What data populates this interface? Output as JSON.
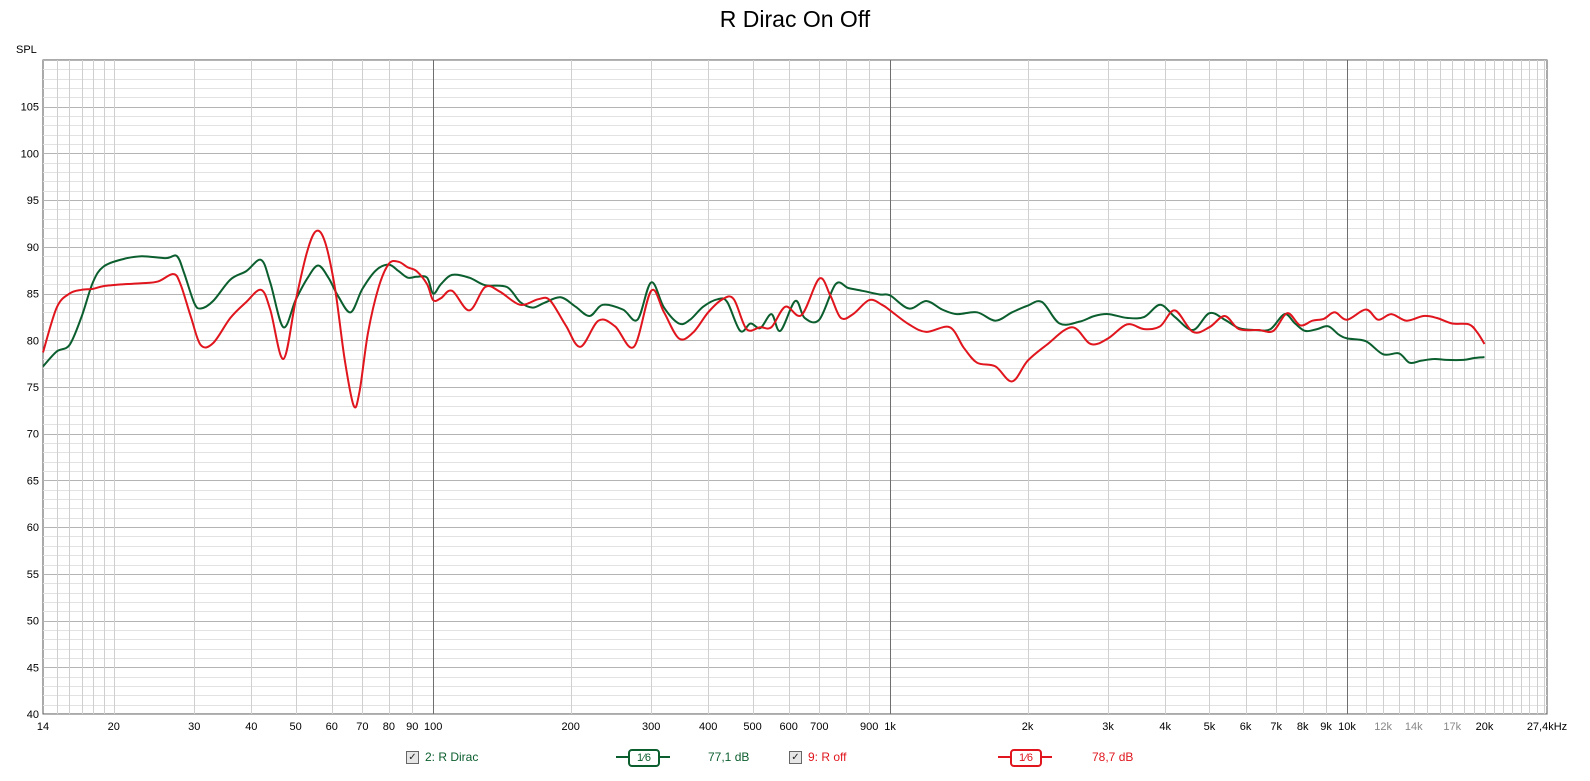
{
  "chart_data": {
    "type": "line",
    "title": "R Dirac On Off",
    "ylabel": "SPL",
    "xlabel": "",
    "x_scale": "log",
    "xlim": [
      14,
      27400
    ],
    "ylim": [
      40,
      110
    ],
    "grid": true,
    "y_ticks": [
      "40",
      "45",
      "50",
      "55",
      "60",
      "65",
      "70",
      "75",
      "80",
      "85",
      "90",
      "95",
      "100",
      "105"
    ],
    "x_ticks": [
      {
        "v": 14,
        "label": "14",
        "minor": false
      },
      {
        "v": 20,
        "label": "20",
        "minor": false
      },
      {
        "v": 30,
        "label": "30",
        "minor": false
      },
      {
        "v": 40,
        "label": "40",
        "minor": false
      },
      {
        "v": 50,
        "label": "50",
        "minor": false
      },
      {
        "v": 60,
        "label": "60",
        "minor": false
      },
      {
        "v": 70,
        "label": "70",
        "minor": false
      },
      {
        "v": 80,
        "label": "80",
        "minor": false
      },
      {
        "v": 90,
        "label": "90",
        "minor": false
      },
      {
        "v": 100,
        "label": "100",
        "minor": false
      },
      {
        "v": 200,
        "label": "200",
        "minor": false
      },
      {
        "v": 300,
        "label": "300",
        "minor": false
      },
      {
        "v": 400,
        "label": "400",
        "minor": false
      },
      {
        "v": 500,
        "label": "500",
        "minor": false
      },
      {
        "v": 600,
        "label": "600",
        "minor": false
      },
      {
        "v": 700,
        "label": "700",
        "minor": false
      },
      {
        "v": 900,
        "label": "900",
        "minor": false
      },
      {
        "v": 1000,
        "label": "1k",
        "minor": false
      },
      {
        "v": 2000,
        "label": "2k",
        "minor": false
      },
      {
        "v": 3000,
        "label": "3k",
        "minor": false
      },
      {
        "v": 4000,
        "label": "4k",
        "minor": false
      },
      {
        "v": 5000,
        "label": "5k",
        "minor": false
      },
      {
        "v": 6000,
        "label": "6k",
        "minor": false
      },
      {
        "v": 7000,
        "label": "7k",
        "minor": false
      },
      {
        "v": 8000,
        "label": "8k",
        "minor": false
      },
      {
        "v": 9000,
        "label": "9k",
        "minor": false
      },
      {
        "v": 10000,
        "label": "10k",
        "minor": false
      },
      {
        "v": 12000,
        "label": "12k",
        "minor": true
      },
      {
        "v": 14000,
        "label": "14k",
        "minor": true
      },
      {
        "v": 17000,
        "label": "17k",
        "minor": true
      },
      {
        "v": 20000,
        "label": "20k",
        "minor": false
      },
      {
        "v": 27400,
        "label": "27,4kHz",
        "minor": false
      }
    ],
    "series": [
      {
        "name": "2: R Dirac",
        "color": "#0b5e2e",
        "points": [
          [
            14,
            77.2
          ],
          [
            15,
            78.8
          ],
          [
            16,
            79.5
          ],
          [
            17,
            82.5
          ],
          [
            18,
            86.2
          ],
          [
            19,
            87.9
          ],
          [
            21,
            88.7
          ],
          [
            23,
            89.0
          ],
          [
            26,
            88.8
          ],
          [
            27.5,
            89.0
          ],
          [
            28.5,
            87.2
          ],
          [
            30,
            84.0
          ],
          [
            31,
            83.4
          ],
          [
            33,
            84.2
          ],
          [
            36,
            86.5
          ],
          [
            39,
            87.4
          ],
          [
            42,
            88.6
          ],
          [
            44,
            86.2
          ],
          [
            47,
            81.4
          ],
          [
            50,
            84.3
          ],
          [
            53,
            86.6
          ],
          [
            56,
            88.0
          ],
          [
            59,
            86.7
          ],
          [
            62,
            84.7
          ],
          [
            66,
            83.0
          ],
          [
            70,
            85.5
          ],
          [
            75,
            87.5
          ],
          [
            80,
            88.1
          ],
          [
            84,
            87.4
          ],
          [
            88,
            86.7
          ],
          [
            92,
            86.8
          ],
          [
            97,
            86.7
          ],
          [
            100,
            85.0
          ],
          [
            104,
            86.0
          ],
          [
            110,
            87.0
          ],
          [
            120,
            86.7
          ],
          [
            130,
            85.9
          ],
          [
            145,
            85.7
          ],
          [
            155,
            84.1
          ],
          [
            165,
            83.5
          ],
          [
            175,
            84.0
          ],
          [
            190,
            84.6
          ],
          [
            205,
            83.6
          ],
          [
            220,
            82.6
          ],
          [
            235,
            83.8
          ],
          [
            260,
            83.3
          ],
          [
            280,
            82.2
          ],
          [
            300,
            86.2
          ],
          [
            320,
            83.5
          ],
          [
            345,
            81.8
          ],
          [
            365,
            82.2
          ],
          [
            390,
            83.6
          ],
          [
            420,
            84.4
          ],
          [
            440,
            84.1
          ],
          [
            470,
            81.0
          ],
          [
            495,
            81.8
          ],
          [
            520,
            81.3
          ],
          [
            550,
            82.8
          ],
          [
            575,
            81.0
          ],
          [
            620,
            84.2
          ],
          [
            650,
            82.4
          ],
          [
            700,
            82.2
          ],
          [
            760,
            86.0
          ],
          [
            810,
            85.6
          ],
          [
            870,
            85.3
          ],
          [
            950,
            84.9
          ],
          [
            1000,
            84.8
          ],
          [
            1100,
            83.4
          ],
          [
            1200,
            84.2
          ],
          [
            1300,
            83.3
          ],
          [
            1400,
            82.8
          ],
          [
            1550,
            83.0
          ],
          [
            1700,
            82.1
          ],
          [
            1850,
            83.0
          ],
          [
            2000,
            83.7
          ],
          [
            2150,
            84.1
          ],
          [
            2350,
            81.8
          ],
          [
            2600,
            82.0
          ],
          [
            2800,
            82.6
          ],
          [
            3000,
            82.8
          ],
          [
            3300,
            82.4
          ],
          [
            3600,
            82.5
          ],
          [
            3900,
            83.8
          ],
          [
            4200,
            82.5
          ],
          [
            4600,
            81.1
          ],
          [
            5000,
            82.9
          ],
          [
            5400,
            82.2
          ],
          [
            5800,
            81.3
          ],
          [
            6300,
            81.1
          ],
          [
            6800,
            81.2
          ],
          [
            7300,
            82.8
          ],
          [
            7700,
            81.8
          ],
          [
            8100,
            81.0
          ],
          [
            8600,
            81.2
          ],
          [
            9100,
            81.5
          ],
          [
            9600,
            80.6
          ],
          [
            10000,
            80.2
          ],
          [
            11000,
            79.9
          ],
          [
            12000,
            78.5
          ],
          [
            13000,
            78.6
          ],
          [
            13700,
            77.6
          ],
          [
            14500,
            77.8
          ],
          [
            15500,
            78.0
          ],
          [
            16500,
            77.9
          ],
          [
            18000,
            77.9
          ],
          [
            19000,
            78.1
          ],
          [
            20000,
            78.2
          ]
        ]
      },
      {
        "name": "9: R off",
        "color": "#e0151d",
        "points": [
          [
            14,
            78.7
          ],
          [
            15,
            83.5
          ],
          [
            16,
            85.0
          ],
          [
            17,
            85.4
          ],
          [
            18,
            85.5
          ],
          [
            19,
            85.8
          ],
          [
            21,
            86.0
          ],
          [
            23,
            86.1
          ],
          [
            25,
            86.3
          ],
          [
            27,
            87.1
          ],
          [
            28,
            86.0
          ],
          [
            29.5,
            82.5
          ],
          [
            31,
            79.5
          ],
          [
            33,
            79.7
          ],
          [
            36,
            82.4
          ],
          [
            39,
            84.1
          ],
          [
            42,
            85.4
          ],
          [
            44,
            83.3
          ],
          [
            47,
            78.0
          ],
          [
            50,
            84.2
          ],
          [
            53,
            89.5
          ],
          [
            55.5,
            91.7
          ],
          [
            58,
            90.5
          ],
          [
            61,
            85.5
          ],
          [
            64,
            78.0
          ],
          [
            67,
            73.0
          ],
          [
            69,
            74.5
          ],
          [
            72,
            80.8
          ],
          [
            76,
            85.7
          ],
          [
            80,
            88.2
          ],
          [
            84,
            88.4
          ],
          [
            88,
            87.8
          ],
          [
            92,
            87.4
          ],
          [
            97,
            86.0
          ],
          [
            100,
            84.3
          ],
          [
            104,
            84.5
          ],
          [
            110,
            85.3
          ],
          [
            120,
            83.2
          ],
          [
            130,
            85.7
          ],
          [
            140,
            85.2
          ],
          [
            155,
            83.8
          ],
          [
            170,
            84.4
          ],
          [
            180,
            84.3
          ],
          [
            195,
            81.6
          ],
          [
            210,
            79.3
          ],
          [
            230,
            82.1
          ],
          [
            250,
            81.5
          ],
          [
            275,
            79.3
          ],
          [
            300,
            85.3
          ],
          [
            320,
            83.0
          ],
          [
            345,
            80.2
          ],
          [
            370,
            80.8
          ],
          [
            400,
            83.0
          ],
          [
            430,
            84.4
          ],
          [
            455,
            84.4
          ],
          [
            485,
            81.2
          ],
          [
            520,
            81.4
          ],
          [
            550,
            81.4
          ],
          [
            590,
            83.6
          ],
          [
            640,
            82.7
          ],
          [
            700,
            86.6
          ],
          [
            740,
            84.8
          ],
          [
            780,
            82.4
          ],
          [
            830,
            82.8
          ],
          [
            900,
            84.3
          ],
          [
            960,
            83.8
          ],
          [
            1000,
            83.2
          ],
          [
            1100,
            81.7
          ],
          [
            1200,
            80.9
          ],
          [
            1350,
            81.4
          ],
          [
            1450,
            79.2
          ],
          [
            1550,
            77.6
          ],
          [
            1700,
            77.2
          ],
          [
            1850,
            75.6
          ],
          [
            2000,
            77.8
          ],
          [
            2200,
            79.5
          ],
          [
            2500,
            81.4
          ],
          [
            2750,
            79.6
          ],
          [
            3000,
            80.2
          ],
          [
            3300,
            81.7
          ],
          [
            3600,
            81.2
          ],
          [
            3900,
            81.5
          ],
          [
            4200,
            83.2
          ],
          [
            4600,
            80.9
          ],
          [
            5000,
            81.4
          ],
          [
            5400,
            82.6
          ],
          [
            5800,
            81.2
          ],
          [
            6400,
            81.1
          ],
          [
            6900,
            81.0
          ],
          [
            7400,
            82.9
          ],
          [
            7900,
            81.6
          ],
          [
            8400,
            82.1
          ],
          [
            8900,
            82.3
          ],
          [
            9400,
            83.0
          ],
          [
            10000,
            82.2
          ],
          [
            11000,
            83.3
          ],
          [
            11700,
            82.2
          ],
          [
            12500,
            82.8
          ],
          [
            13500,
            82.1
          ],
          [
            14700,
            82.6
          ],
          [
            15700,
            82.4
          ],
          [
            17000,
            81.8
          ],
          [
            18500,
            81.7
          ],
          [
            19300,
            80.8
          ],
          [
            20000,
            79.6
          ]
        ]
      }
    ]
  },
  "legend": [
    {
      "label": "2: R Dirac",
      "checked": "✓",
      "smoothing": "1⁄6",
      "level": "77,1 dB",
      "color": "#0b5e2e"
    },
    {
      "label": "9: R off",
      "checked": "✓",
      "smoothing": "1⁄6",
      "level": "78,7 dB",
      "color": "#e0151d"
    }
  ]
}
